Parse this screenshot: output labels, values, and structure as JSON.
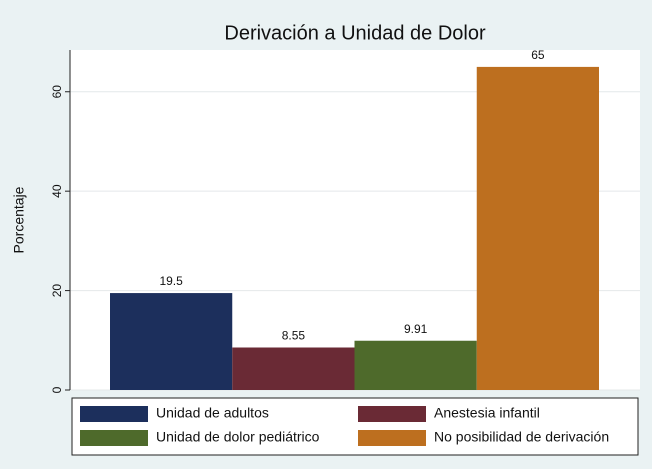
{
  "chart_data": {
    "type": "bar",
    "title": "Derivación a Unidad de Dolor",
    "y_label": "Porcentaje",
    "series": [
      {
        "name": "Unidad de adultos",
        "color": "#1c2f5c",
        "values": [
          19.5
        ]
      },
      {
        "name": "Anestesia infantil",
        "color": "#6a2a35",
        "values": [
          8.55
        ]
      },
      {
        "name": "Unidad de dolor pediátrico",
        "color": "#4e6a2b",
        "values": [
          9.91
        ]
      },
      {
        "name": "No posibilidad de derivación",
        "color": "#bd6f1f",
        "values": [
          65
        ]
      }
    ],
    "ylim": [
      0,
      68.4
    ],
    "yticks": [
      0,
      20,
      40,
      60
    ],
    "grid": true,
    "legend": "bottom"
  }
}
